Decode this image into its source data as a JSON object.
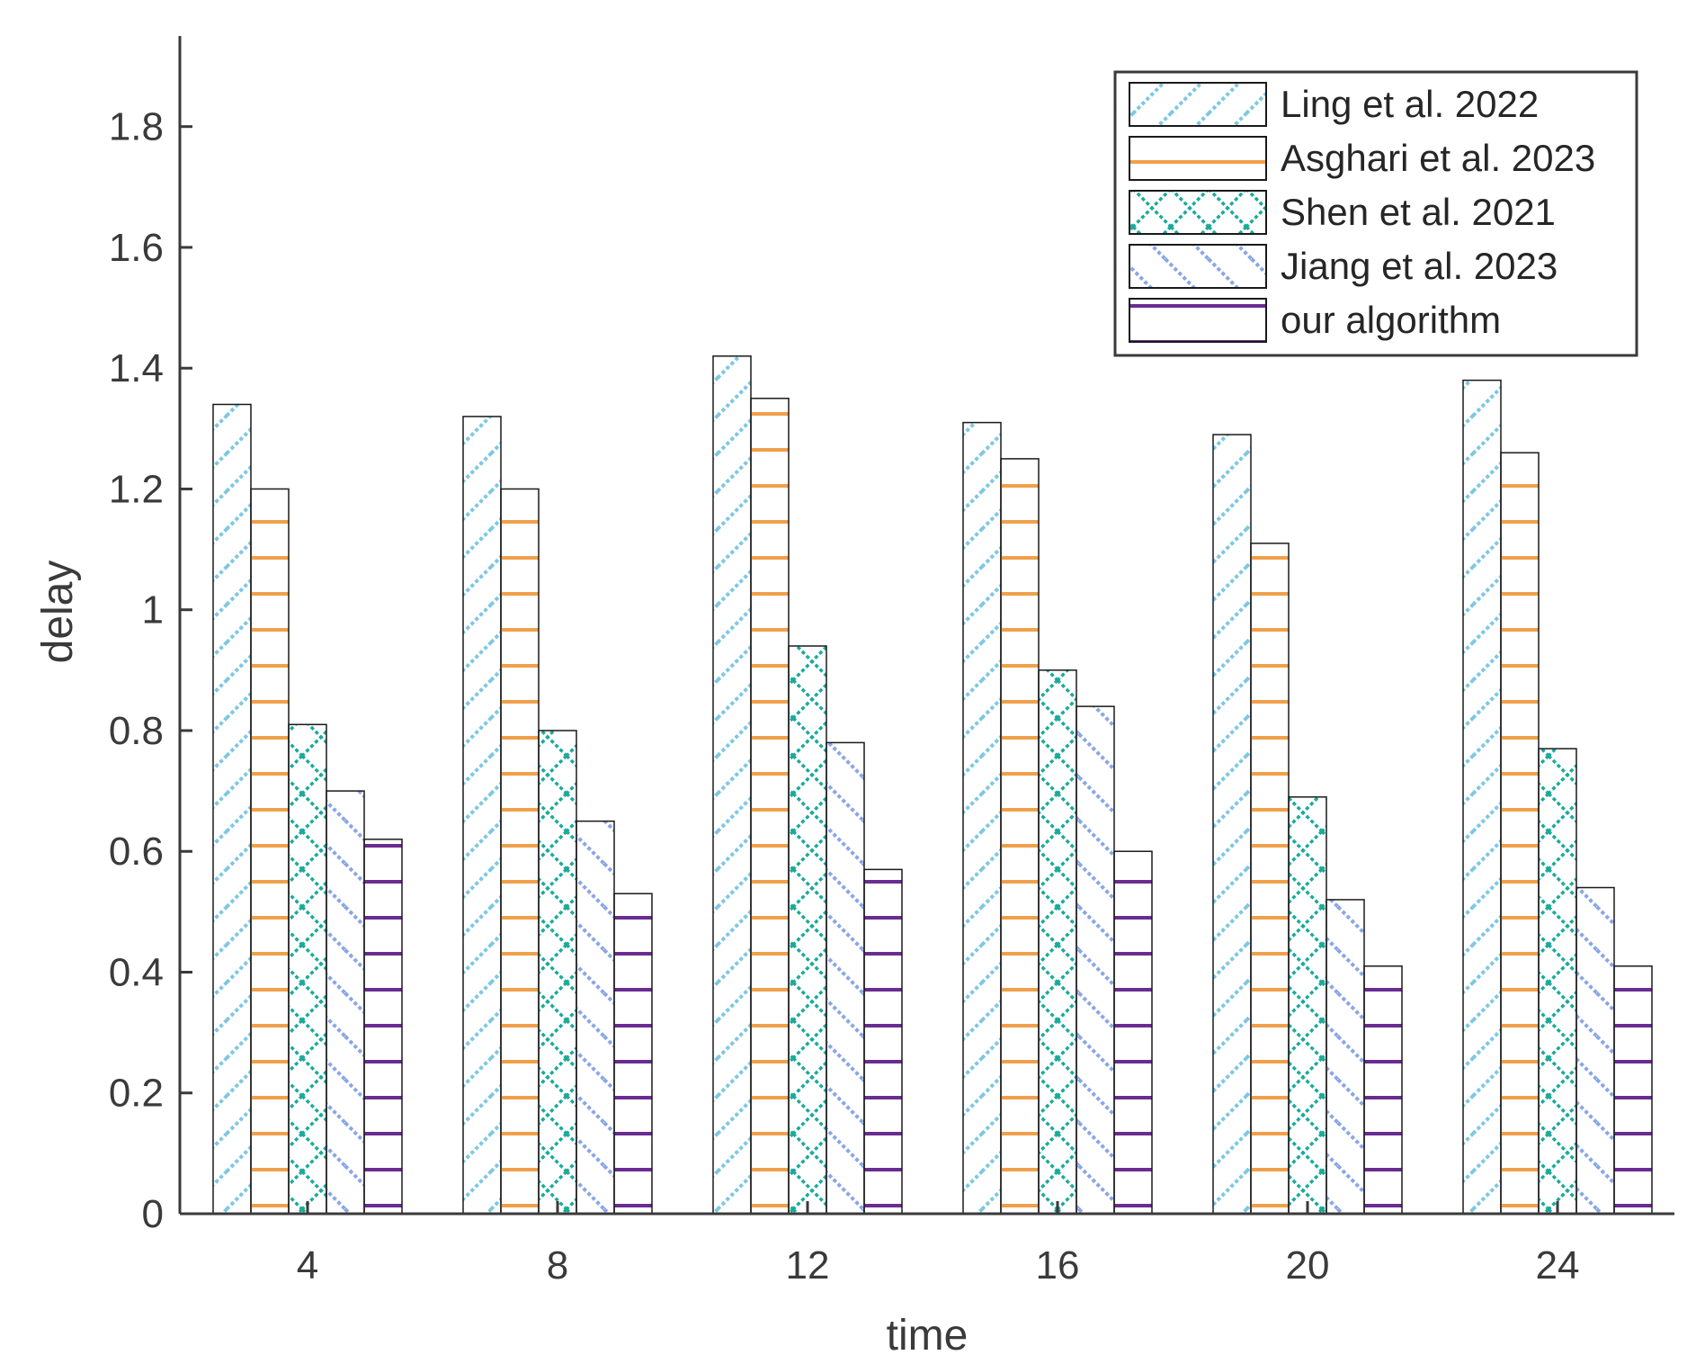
{
  "chart_data": {
    "type": "bar",
    "title": "",
    "xlabel": "time",
    "ylabel": "delay",
    "ylim": [
      0,
      1.95
    ],
    "yticks": [
      "0",
      "0.2",
      "0.4",
      "0.6",
      "0.8",
      "1",
      "1.2",
      "1.4",
      "1.6",
      "1.8"
    ],
    "categories": [
      "4",
      "8",
      "12",
      "16",
      "20",
      "24"
    ],
    "legend_position": "top-right",
    "series": [
      {
        "name": "Ling et al. 2022",
        "pattern": "diagonal-forward",
        "color": "#7ec8e3",
        "values": [
          1.34,
          1.32,
          1.42,
          1.31,
          1.29,
          1.38
        ]
      },
      {
        "name": "Asghari et al. 2023",
        "pattern": "cross",
        "color": "#f0a04b",
        "values": [
          1.2,
          1.2,
          1.35,
          1.25,
          1.11,
          1.26
        ]
      },
      {
        "name": "Shen et al. 2021",
        "pattern": "diamond",
        "color": "#1aaa9a",
        "values": [
          0.81,
          0.8,
          0.94,
          0.9,
          0.69,
          0.77
        ]
      },
      {
        "name": "Jiang et al. 2023",
        "pattern": "diagonal-back",
        "color": "#8aa6e6",
        "values": [
          0.7,
          0.65,
          0.78,
          0.84,
          0.52,
          0.54
        ]
      },
      {
        "name": "our algorithm",
        "pattern": "horizontal",
        "color": "#6a2c91",
        "values": [
          0.62,
          0.53,
          0.57,
          0.6,
          0.41,
          0.41
        ]
      }
    ]
  }
}
